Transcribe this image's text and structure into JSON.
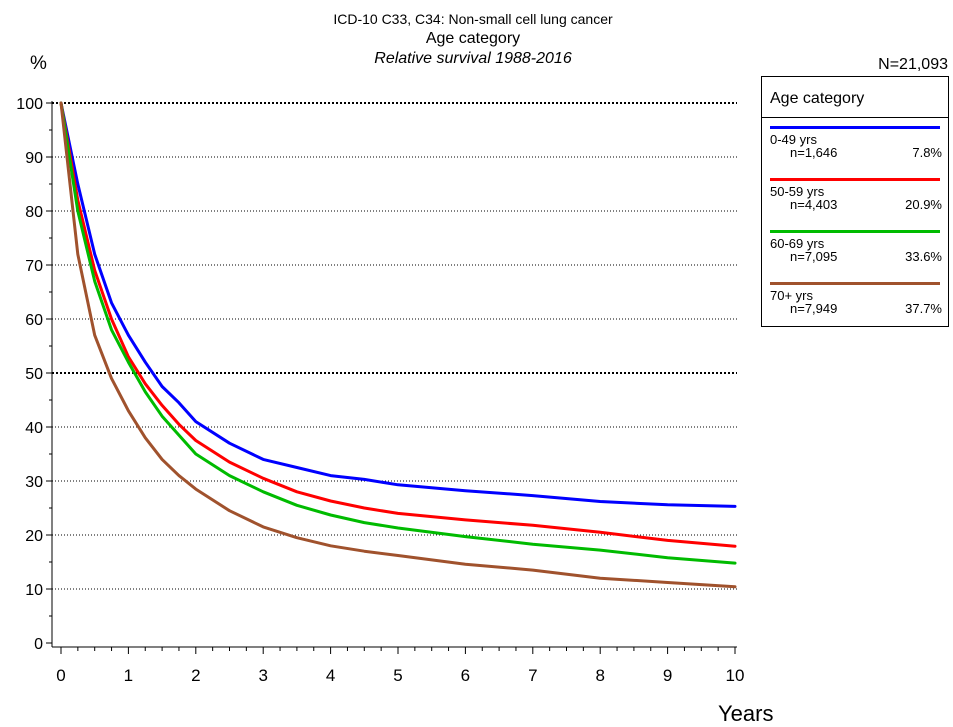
{
  "header": {
    "title_line1": "ICD-10 C33, C34: Non-small cell lung cancer",
    "title_line2": "Age category",
    "title_line3": "Relative survival 1988-2016",
    "total_n": "N=21,093"
  },
  "chart_data": {
    "type": "line",
    "title": "ICD-10 C33, C34: Non-small cell lung cancer",
    "subtitle": "Relative survival 1988-2016",
    "xlabel": "Years",
    "ylabel": "%",
    "xlim": [
      0,
      10
    ],
    "ylim": [
      0,
      100
    ],
    "xticks": [
      "0",
      "1",
      "2",
      "3",
      "4",
      "5",
      "6",
      "7",
      "8",
      "9",
      "10"
    ],
    "yticks": [
      "0",
      "10",
      "20",
      "30",
      "40",
      "50",
      "60",
      "70",
      "80",
      "90",
      "100"
    ],
    "grid": "horizontal dotted at 10..100",
    "legend_position": "right",
    "legend_title": "Age category",
    "x": [
      0,
      0.25,
      0.5,
      0.75,
      1,
      1.25,
      1.5,
      1.75,
      2,
      2.5,
      3,
      3.5,
      4,
      4.5,
      5,
      6,
      7,
      8,
      9,
      10
    ],
    "series": [
      {
        "name": "0-49 yrs",
        "n": "n=1,646",
        "pct": "7.8%",
        "color": "#0000ff",
        "values": [
          100,
          85,
          72,
          63,
          57,
          52,
          47.5,
          44.5,
          41,
          37,
          34,
          32.5,
          31,
          30.3,
          29.3,
          28.2,
          27.3,
          26.2,
          25.6,
          25.3
        ]
      },
      {
        "name": "50-59 yrs",
        "n": "n=4,403",
        "pct": "20.9%",
        "color": "#ff0000",
        "values": [
          100,
          82,
          69,
          60,
          53,
          48,
          44,
          40.5,
          37.5,
          33.5,
          30.5,
          28,
          26.3,
          25,
          24,
          22.8,
          21.8,
          20.5,
          19,
          17.9
        ]
      },
      {
        "name": "60-69 yrs",
        "n": "n=7,095",
        "pct": "33.6%",
        "color": "#00bb00",
        "values": [
          100,
          80,
          67,
          58,
          52,
          46.5,
          42,
          38.5,
          35,
          31,
          28,
          25.5,
          23.7,
          22.3,
          21.3,
          19.7,
          18.3,
          17.2,
          15.8,
          14.8
        ]
      },
      {
        "name": "70+ yrs",
        "n": "n=7,949",
        "pct": "37.7%",
        "color": "#a0522d",
        "values": [
          100,
          72,
          57,
          49,
          43,
          38,
          34,
          31,
          28.5,
          24.5,
          21.5,
          19.5,
          18,
          17,
          16.2,
          14.6,
          13.5,
          12,
          11.2,
          10.4
        ]
      }
    ]
  }
}
